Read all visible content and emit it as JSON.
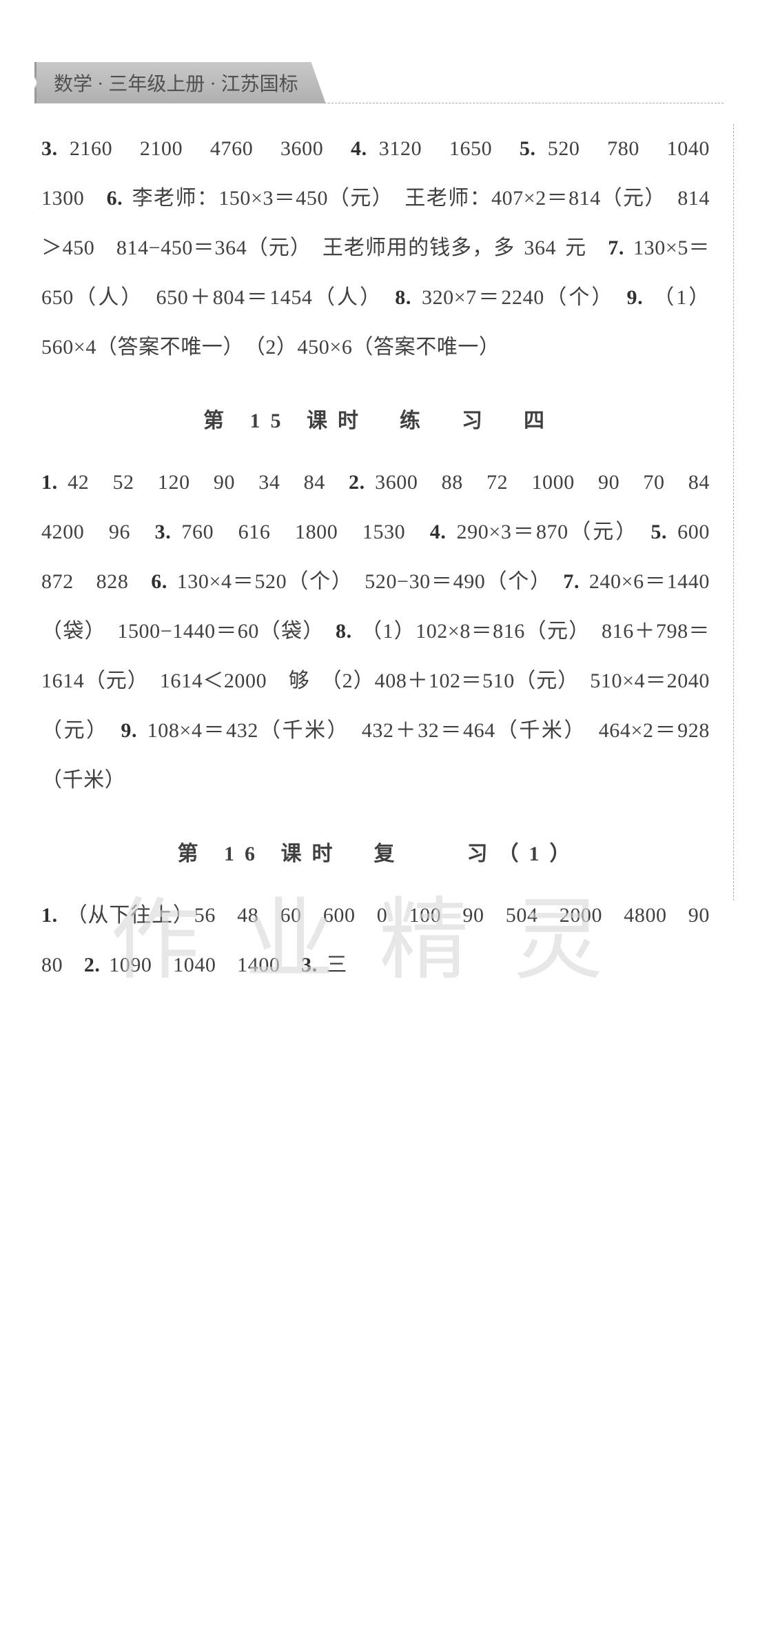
{
  "page": {
    "background_color": "#ffffff",
    "text_color": "#404040",
    "font_size": 30,
    "line_height": 2.4
  },
  "header": {
    "text": "数学 · 三年级上册 · 江苏国标",
    "bg_color_start": "#c8c8c8",
    "bg_color_end": "#b0b0b0",
    "text_color": "#505050",
    "font_size": 28
  },
  "block1": {
    "text": "3. 2160　2100　4760　3600　4. 3120　1650　5. 520　780　1040　1300　6. 李老师：150×3＝450（元）　王老师：407×2＝814（元）　814＞450　814−450＝364（元）　王老师用的钱多，多 364 元　7. 130×5＝650（人）　650＋804＝1454（人）　8. 320×7＝2240（个）　9. （1）560×4（答案不唯一）　（2）450×6（答案不唯一）"
  },
  "section15": {
    "title": "第 15 课时　练　习　四"
  },
  "block2": {
    "text": "1. 42　52　120　90　34　84　2. 3600　88　72　1000　90　70　84　4200　96　3. 760　616　1800　1530　4. 290×3＝870（元）　5. 600　872　828　6. 130×4＝520（个）　520−30＝490（个）　7. 240×6＝1440（袋）　1500−1440＝60（袋）　8. （1）102×8＝816（元）　816＋798＝1614（元）　1614＜2000　够　（2）408＋102＝510（元）　510×4＝2040（元）　9. 108×4＝432（千米）　432＋32＝464（千米）　464×2＝928（千米）"
  },
  "section16": {
    "title": "第 16 课时　复　　习（1）"
  },
  "block3": {
    "text": "1. （从下往上）56　48　60　600　0　100　90　504　2000　4800　90　80　2. 1090　1040　1400　3. 三"
  },
  "watermark": {
    "text": "作业精灵",
    "color": "#d8d8d8",
    "font_size": 130
  }
}
